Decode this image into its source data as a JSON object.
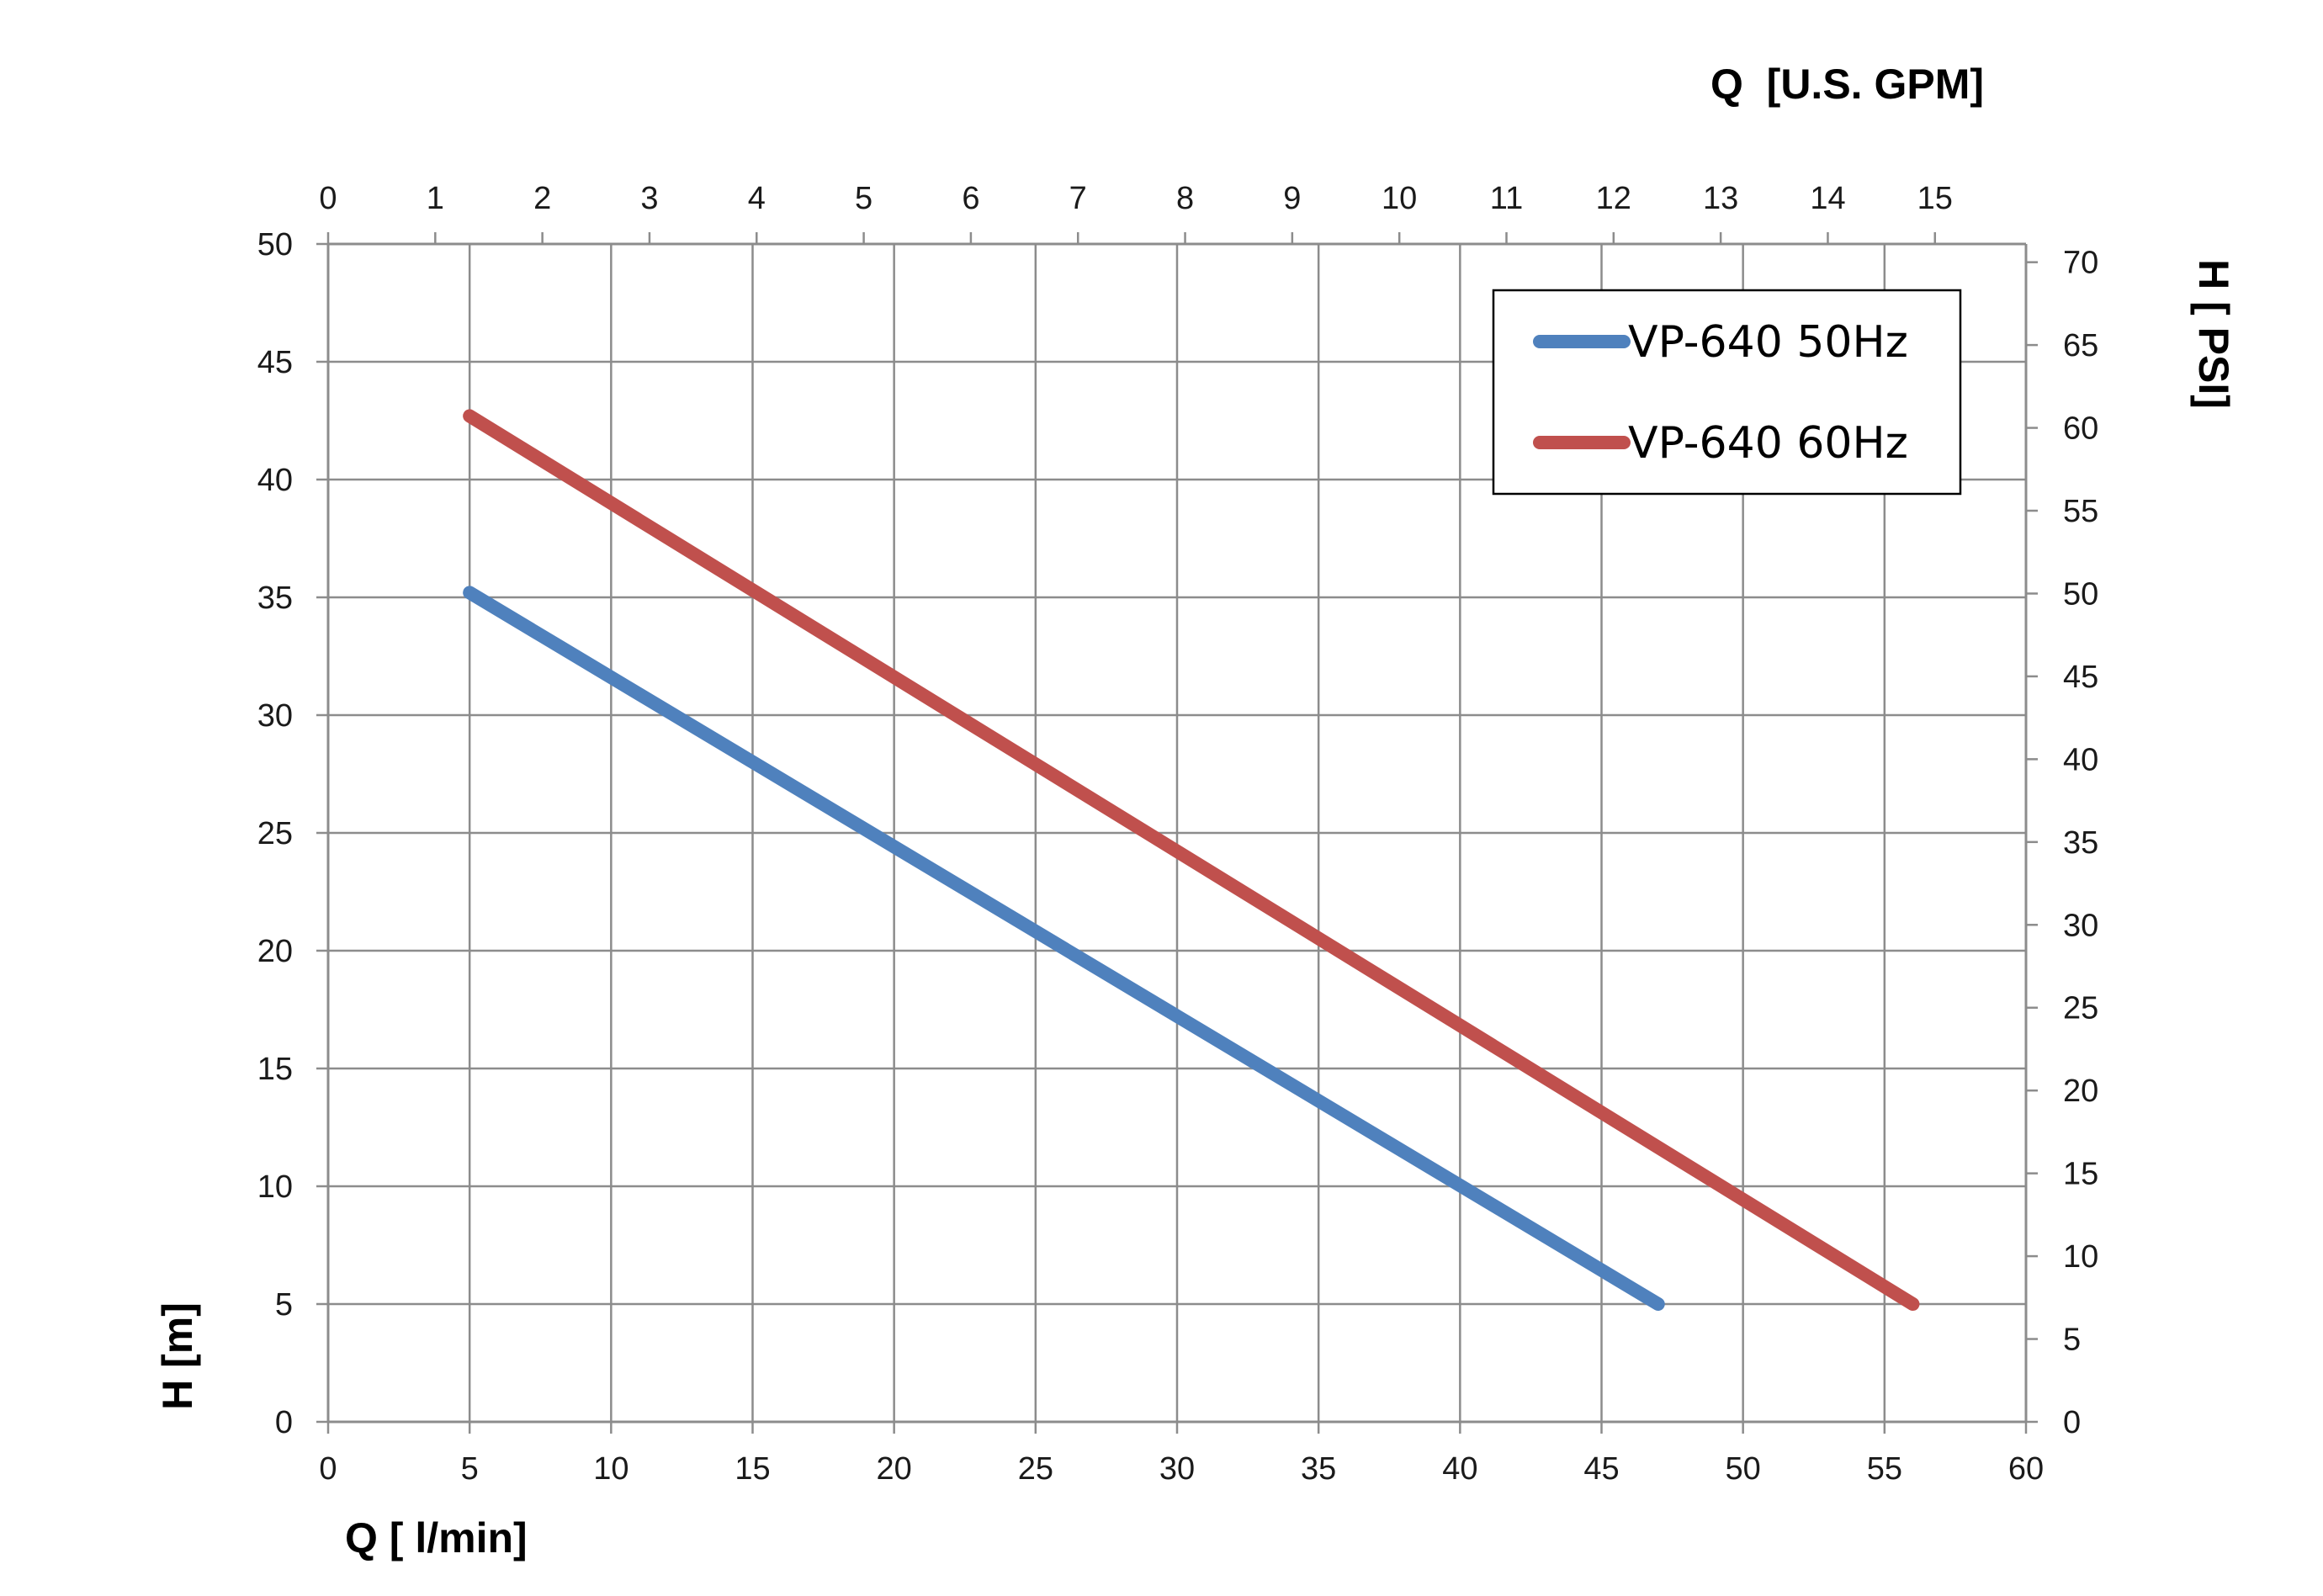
{
  "chart_data": {
    "type": "line",
    "axes": {
      "x_bottom": {
        "label": "Q [ l/min]",
        "range": [
          0,
          60
        ],
        "ticks": [
          0,
          5,
          10,
          15,
          20,
          25,
          30,
          35,
          40,
          45,
          50,
          55,
          60
        ]
      },
      "x_top": {
        "label": "Q  [U.S. GPM]",
        "range": [
          0,
          15.85
        ],
        "ticks": [
          0,
          1,
          2,
          3,
          4,
          5,
          6,
          7,
          8,
          9,
          10,
          11,
          12,
          13,
          14,
          15
        ]
      },
      "y_left": {
        "label": "H [m]",
        "range": [
          0,
          50
        ],
        "ticks": [
          0,
          5,
          10,
          15,
          20,
          25,
          30,
          35,
          40,
          45,
          50
        ]
      },
      "y_right": {
        "label": "H [ PSI]",
        "range": [
          0,
          71.1
        ],
        "ticks": [
          0,
          5,
          10,
          15,
          20,
          25,
          30,
          35,
          40,
          45,
          50,
          55,
          60,
          65,
          70
        ]
      }
    },
    "grid": true,
    "legend_position": "top-right",
    "series": [
      {
        "name": "VP-640 50Hz",
        "color": "#4f81bd",
        "points": [
          [
            5,
            35.2
          ],
          [
            47,
            5
          ]
        ]
      },
      {
        "name": "VP-640 60Hz",
        "color": "#c0504d",
        "points": [
          [
            5,
            42.7
          ],
          [
            56,
            5
          ]
        ]
      }
    ]
  }
}
